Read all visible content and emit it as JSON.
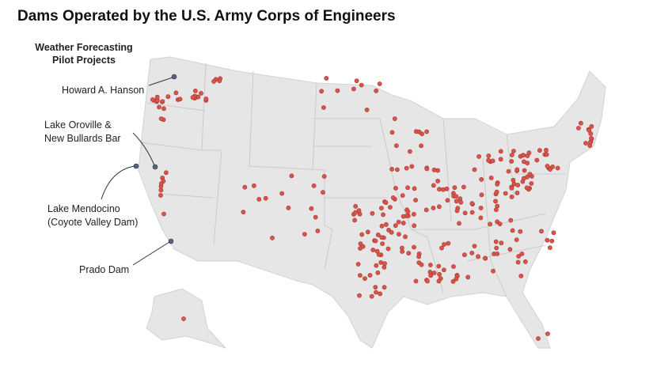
{
  "title": "Dams Operated by the U.S. Army Corps of Engineers",
  "legend_title": [
    "Weather Forecasting",
    "Pilot Projects"
  ],
  "annotations": [
    {
      "lines": [
        "Howard A. Hanson"
      ]
    },
    {
      "lines": [
        "Lake Oroville &",
        "New Bullards Bar"
      ]
    },
    {
      "lines": [
        "Lake Mendocino",
        "(Coyote Valley Dam)"
      ]
    },
    {
      "lines": [
        "Prado Dam"
      ]
    }
  ]
}
